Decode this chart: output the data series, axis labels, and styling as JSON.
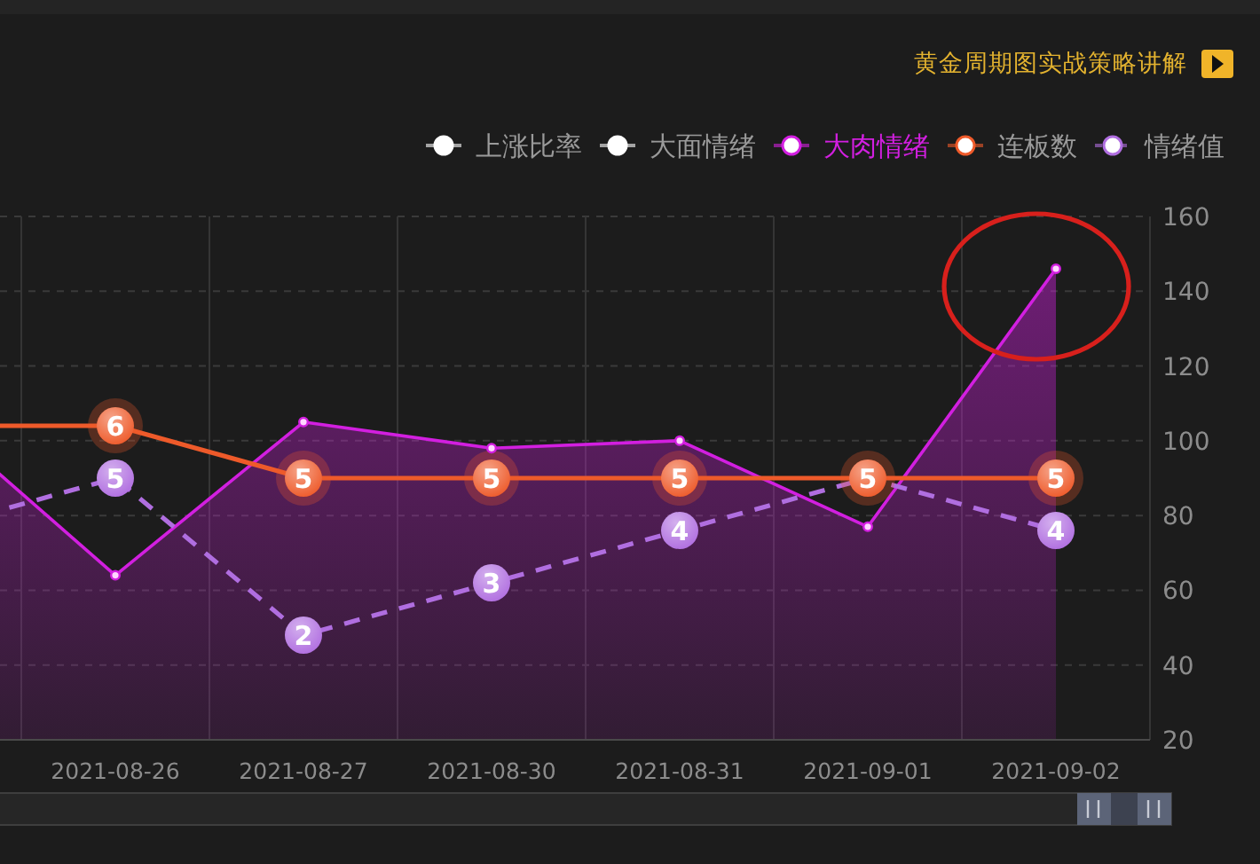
{
  "chart_data": {
    "type": "line",
    "categories": [
      null,
      "2021-08-26",
      "2021-08-27",
      "2021-08-30",
      "2021-08-31",
      "2021-09-01",
      "2021-09-02"
    ],
    "series": [
      {
        "name": "上涨比率",
        "color": "#ffffff",
        "values": [
          null,
          null,
          null,
          null,
          null,
          null,
          null
        ]
      },
      {
        "name": "大面情绪",
        "color": "#ffffff",
        "values": [
          null,
          null,
          null,
          null,
          null,
          null,
          null
        ]
      },
      {
        "name": "大肉情绪",
        "type": "area",
        "color": "#d21fe0",
        "values": [
          108,
          64,
          105,
          98,
          100,
          77,
          146
        ]
      },
      {
        "name": "连板数",
        "color": "#ee5a2a",
        "axis": "y2",
        "values": [
          6,
          6,
          5,
          5,
          5,
          5,
          5
        ],
        "value_labels": [
          null,
          "6",
          "5",
          "5",
          "5",
          "5",
          "5"
        ]
      },
      {
        "name": "情绪值",
        "color": "#b06ee0",
        "axis": "y2",
        "line_style": "dashed",
        "values": [
          4,
          5,
          2,
          3,
          4,
          5,
          4
        ],
        "value_labels": [
          null,
          "5",
          "2",
          "3",
          "4",
          null,
          "4"
        ]
      }
    ],
    "ylim": [
      20,
      160
    ],
    "yticks": [
      20,
      40,
      60,
      80,
      100,
      120,
      140,
      160
    ],
    "y2lim": [
      0,
      10
    ],
    "grid": true,
    "legend": "top right",
    "marker": "circle",
    "annotations": [
      "黄金周期图实战策略讲解"
    ]
  }
}
